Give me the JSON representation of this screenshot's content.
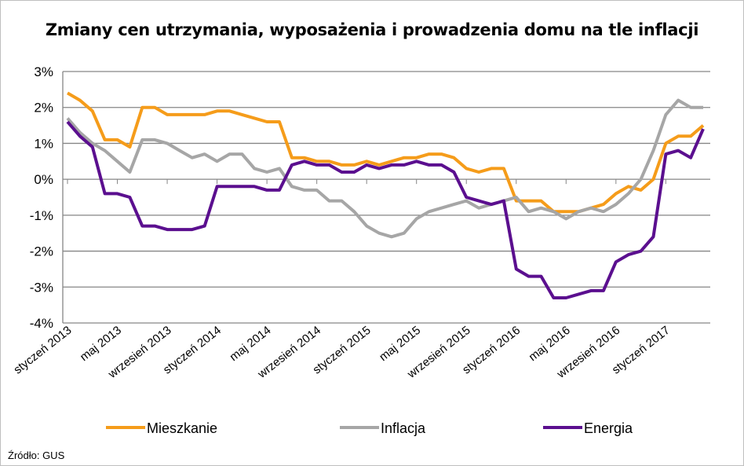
{
  "chart_data": {
    "type": "line",
    "title": "Zmiany cen utrzymania, wyposażenia i prowadzenia domu na tle inflacji",
    "xlabel": "",
    "ylabel": "",
    "ylim": [
      -4,
      3
    ],
    "yticks": [
      "3%",
      "2%",
      "1%",
      "0%",
      "-1%",
      "-2%",
      "-3%",
      "-4%"
    ],
    "ytick_values": [
      3,
      2,
      1,
      0,
      -1,
      -2,
      -3,
      -4
    ],
    "x_start": "styczeń 2013",
    "n_points": 52,
    "xtick_labels": [
      "styczeń 2013",
      "maj 2013",
      "wrzesień 2013",
      "styczeń 2014",
      "maj 2014",
      "wrzesień 2014",
      "styczeń 2015",
      "maj 2015",
      "wrzesień 2015",
      "styczeń 2016",
      "maj 2016",
      "wrzesień 2016",
      "styczeń 2017"
    ],
    "xtick_step": 4,
    "grid": true,
    "legend_placement": "bottom",
    "series": [
      {
        "name": "Mieszkanie",
        "color": "#F59C1A",
        "values": [
          2.4,
          2.2,
          1.9,
          1.1,
          1.1,
          0.9,
          2.0,
          2.0,
          1.8,
          1.8,
          1.8,
          1.8,
          1.9,
          1.9,
          1.8,
          1.7,
          1.6,
          1.6,
          0.6,
          0.6,
          0.5,
          0.5,
          0.4,
          0.4,
          0.5,
          0.4,
          0.5,
          0.6,
          0.6,
          0.7,
          0.7,
          0.6,
          0.3,
          0.2,
          0.3,
          0.3,
          -0.6,
          -0.6,
          -0.6,
          -0.9,
          -0.9,
          -0.9,
          -0.8,
          -0.7,
          -0.4,
          -0.2,
          -0.3,
          0.0,
          1.0,
          1.2,
          1.2,
          1.5
        ]
      },
      {
        "name": "Inflacja",
        "color": "#A6A6A6",
        "values": [
          1.7,
          1.3,
          1.0,
          0.8,
          0.5,
          0.2,
          1.1,
          1.1,
          1.0,
          0.8,
          0.6,
          0.7,
          0.5,
          0.7,
          0.7,
          0.3,
          0.2,
          0.3,
          -0.2,
          -0.3,
          -0.3,
          -0.6,
          -0.6,
          -0.9,
          -1.3,
          -1.5,
          -1.6,
          -1.5,
          -1.1,
          -0.9,
          -0.8,
          -0.7,
          -0.6,
          -0.8,
          -0.7,
          -0.6,
          -0.5,
          -0.9,
          -0.8,
          -0.9,
          -1.1,
          -0.9,
          -0.8,
          -0.9,
          -0.7,
          -0.4,
          0.0,
          0.8,
          1.8,
          2.2,
          2.0,
          2.0
        ]
      },
      {
        "name": "Energia",
        "color": "#5B0F8F",
        "values": [
          1.6,
          1.2,
          0.9,
          -0.4,
          -0.4,
          -0.5,
          -1.3,
          -1.3,
          -1.4,
          -1.4,
          -1.4,
          -1.3,
          -0.2,
          -0.2,
          -0.2,
          -0.2,
          -0.3,
          -0.3,
          0.4,
          0.5,
          0.4,
          0.4,
          0.2,
          0.2,
          0.4,
          0.3,
          0.4,
          0.4,
          0.5,
          0.4,
          0.4,
          0.2,
          -0.5,
          -0.6,
          -0.7,
          -0.6,
          -2.5,
          -2.7,
          -2.7,
          -3.3,
          -3.3,
          -3.2,
          -3.1,
          -3.1,
          -2.3,
          -2.1,
          -2.0,
          -1.6,
          0.7,
          0.8,
          0.6,
          1.4
        ]
      }
    ]
  },
  "source": "Źródło: GUS"
}
